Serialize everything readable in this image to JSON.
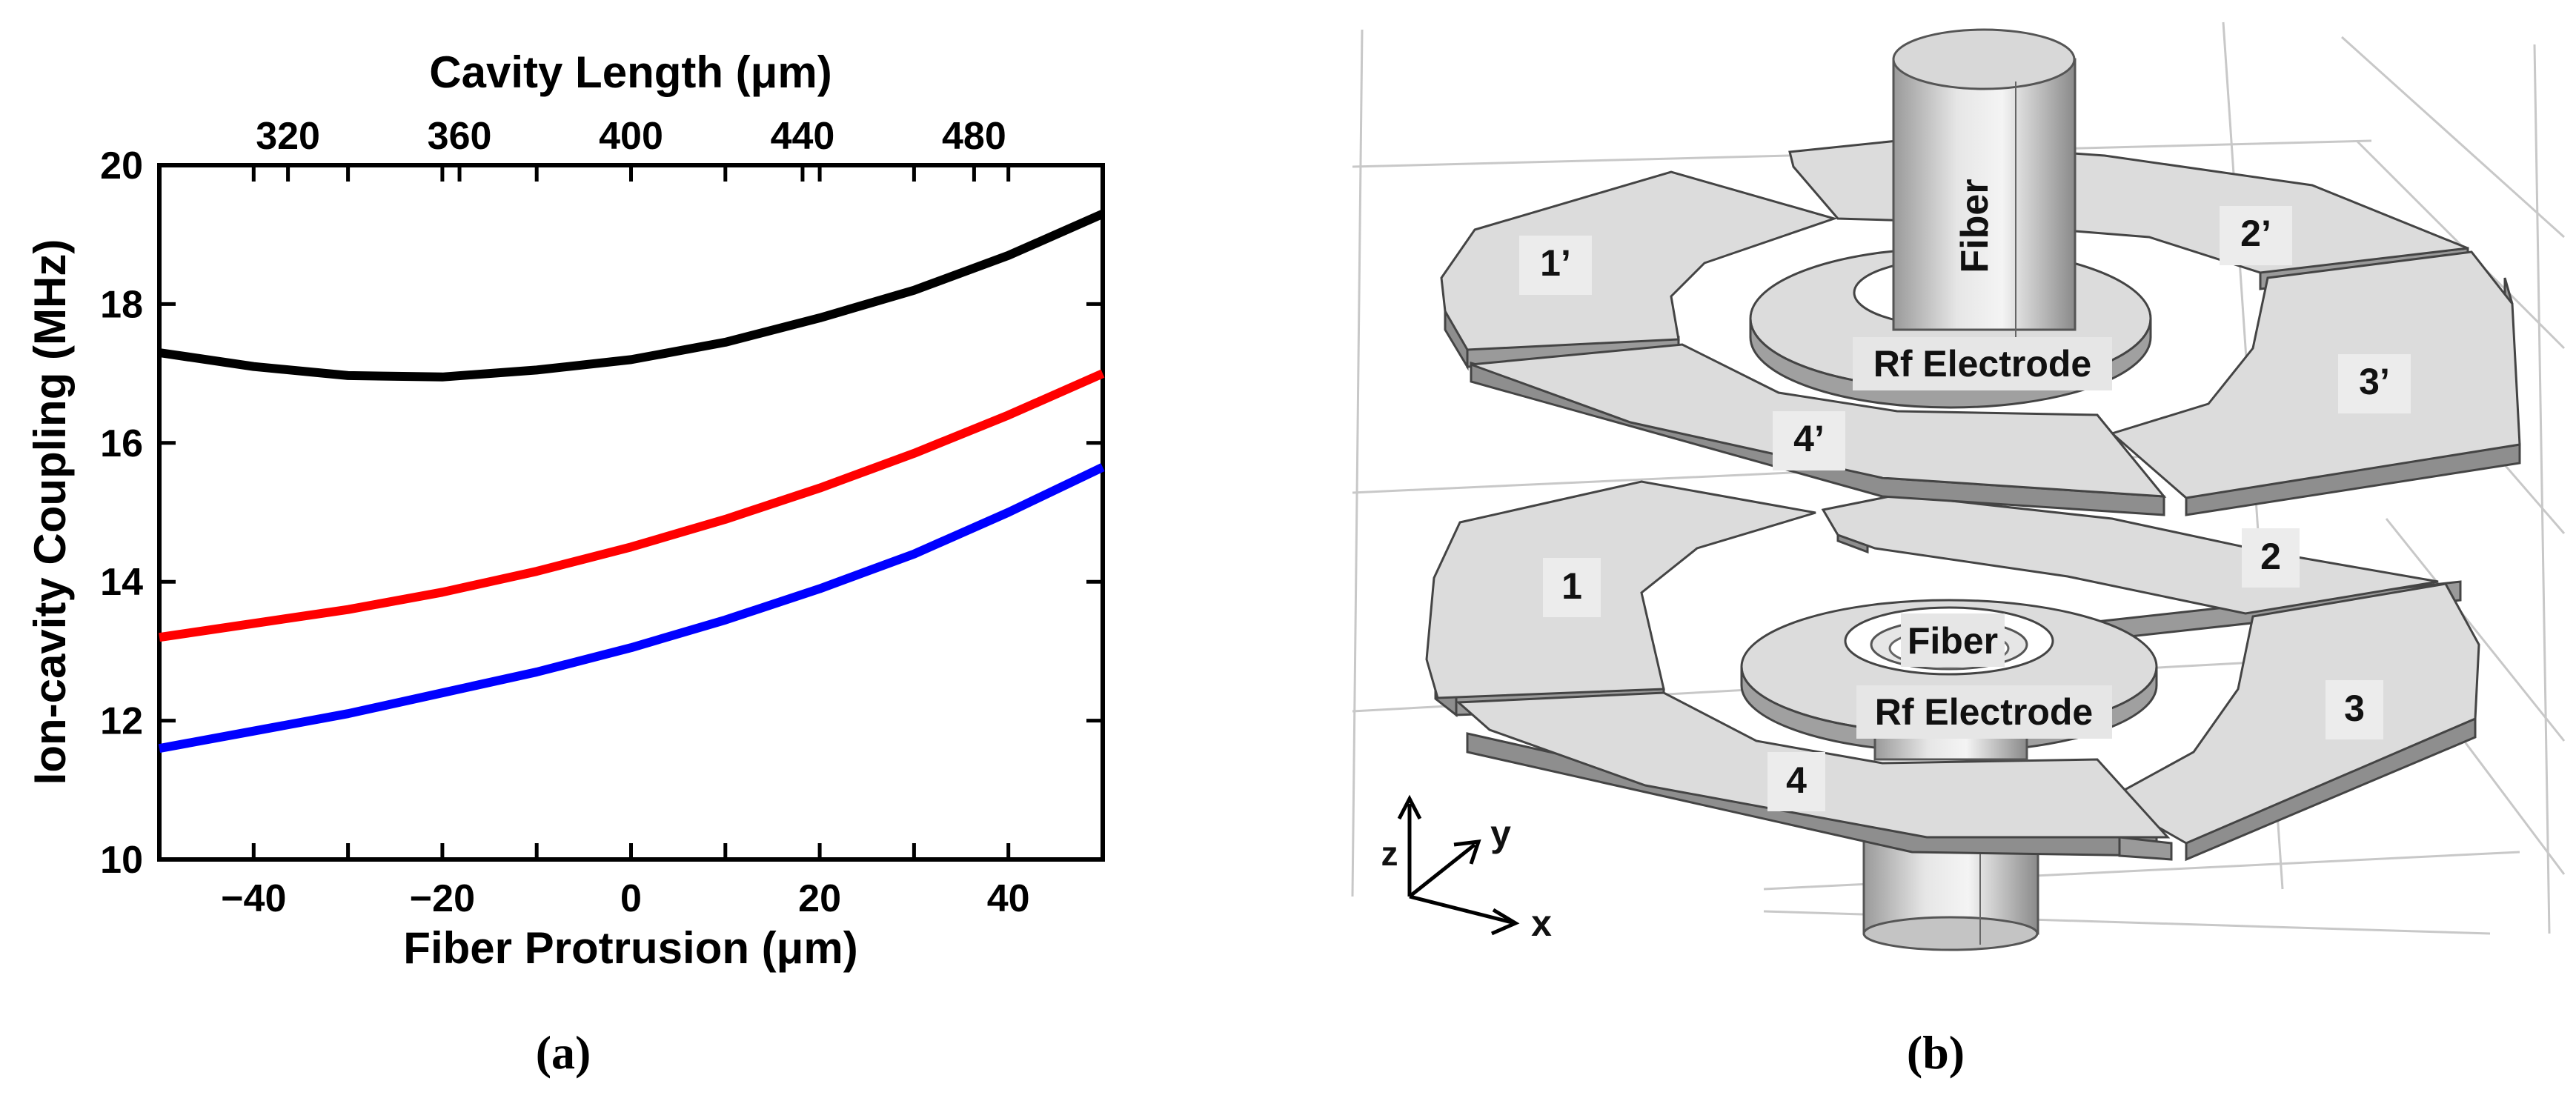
{
  "chart_data": {
    "type": "line",
    "xlabel": "Fiber Protrusion (μm)",
    "top_xlabel": "Cavity Length (μm)",
    "ylabel": "Ion-cavity Coupling (MHz)",
    "xlim": [
      -50,
      50
    ],
    "ylim": [
      10,
      20
    ],
    "x_ticks": [
      -40,
      -20,
      0,
      20,
      40
    ],
    "y_ticks": [
      10,
      12,
      14,
      16,
      18,
      20
    ],
    "top_ticks": [
      320,
      360,
      400,
      440,
      480
    ],
    "grid": false,
    "x": [
      -50,
      -40,
      -30,
      -20,
      -10,
      0,
      10,
      20,
      30,
      40,
      50
    ],
    "series": [
      {
        "color": "#000000",
        "values": [
          17.3,
          17.1,
          16.97,
          16.95,
          17.05,
          17.2,
          17.45,
          17.8,
          18.2,
          18.7,
          19.3
        ]
      },
      {
        "color": "#ff0000",
        "values": [
          13.2,
          13.4,
          13.6,
          13.85,
          14.15,
          14.5,
          14.9,
          15.35,
          15.85,
          16.4,
          17.0
        ]
      },
      {
        "color": "#0000ff",
        "values": [
          11.6,
          11.85,
          12.1,
          12.4,
          12.7,
          13.05,
          13.45,
          13.9,
          14.4,
          15.0,
          15.65
        ]
      }
    ]
  },
  "panel_labels": {
    "a": "(a)",
    "b": "(b)"
  },
  "diagram": {
    "top_fiber_label": "Fiber",
    "bottom_fiber_label": "Fiber",
    "top_rf_label": "Rf Electrode",
    "bottom_rf_label": "Rf Electrode",
    "top_segments": [
      "1’",
      "2’",
      "3’",
      "4’"
    ],
    "bottom_segments": [
      "1",
      "2",
      "3",
      "4"
    ],
    "axes": {
      "x": "x",
      "y": "y",
      "z": "z"
    }
  }
}
